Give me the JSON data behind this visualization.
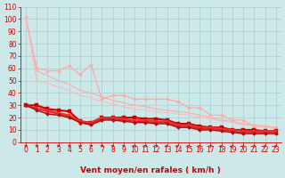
{
  "xlabel": "Vent moyen/en rafales ( km/h )",
  "bg_color": "#cce8e8",
  "grid_color": "#aacece",
  "axis_color": "#cc0000",
  "text_color": "#cc0000",
  "xlim": [
    -0.5,
    23.5
  ],
  "ylim": [
    0,
    110
  ],
  "yticks": [
    0,
    10,
    20,
    30,
    40,
    50,
    60,
    70,
    80,
    90,
    100,
    110
  ],
  "xticks": [
    0,
    1,
    2,
    3,
    4,
    5,
    6,
    7,
    8,
    9,
    10,
    11,
    12,
    13,
    14,
    15,
    16,
    17,
    18,
    19,
    20,
    21,
    22,
    23
  ],
  "lines": [
    {
      "x": [
        0,
        1,
        2,
        3,
        4,
        5,
        6,
        7,
        8,
        9,
        10,
        11,
        12,
        13,
        14,
        15,
        16,
        17,
        18,
        19,
        20,
        21,
        22,
        23
      ],
      "y": [
        102,
        60,
        58,
        58,
        62,
        55,
        63,
        35,
        38,
        38,
        35,
        35,
        35,
        35,
        33,
        28,
        28,
        22,
        22,
        18,
        18,
        13,
        13,
        12
      ],
      "color": "#ffaaaa",
      "lw": 0.9,
      "marker": "D",
      "ms": 2.0
    },
    {
      "x": [
        0,
        1,
        2,
        3,
        4,
        5,
        6,
        7,
        8,
        9,
        10,
        11,
        12,
        13,
        14,
        15,
        16,
        17,
        18,
        19,
        20,
        21,
        22,
        23
      ],
      "y": [
        102,
        58,
        54,
        50,
        47,
        42,
        40,
        37,
        34,
        32,
        30,
        29,
        27,
        26,
        25,
        24,
        22,
        20,
        18,
        17,
        15,
        14,
        13,
        12
      ],
      "color": "#ffaaaa",
      "lw": 0.8,
      "marker": null,
      "ms": 0
    },
    {
      "x": [
        0,
        1,
        2,
        3,
        4,
        5,
        6,
        7,
        8,
        9,
        10,
        11,
        12,
        13,
        14,
        15,
        16,
        17,
        18,
        19,
        20,
        21,
        22,
        23
      ],
      "y": [
        102,
        50,
        48,
        45,
        42,
        38,
        36,
        33,
        31,
        29,
        27,
        26,
        25,
        24,
        23,
        22,
        20,
        19,
        17,
        16,
        14,
        13,
        12,
        11
      ],
      "color": "#ffbbbb",
      "lw": 0.8,
      "marker": null,
      "ms": 0
    },
    {
      "x": [
        0,
        1,
        2,
        3,
        4,
        5,
        6,
        7,
        8,
        9,
        10,
        11,
        12,
        13,
        14,
        15,
        16,
        17,
        18,
        19,
        20,
        21,
        22,
        23
      ],
      "y": [
        30,
        30,
        27,
        26,
        25,
        17,
        16,
        20,
        20,
        20,
        20,
        19,
        19,
        18,
        15,
        15,
        13,
        12,
        12,
        10,
        10,
        10,
        9,
        9
      ],
      "color": "#cc0000",
      "lw": 1.5,
      "marker": "s",
      "ms": 2.2
    },
    {
      "x": [
        0,
        1,
        2,
        3,
        4,
        5,
        6,
        7,
        8,
        9,
        10,
        11,
        12,
        13,
        14,
        15,
        16,
        17,
        18,
        19,
        20,
        21,
        22,
        23
      ],
      "y": [
        30,
        28,
        26,
        24,
        22,
        17,
        16,
        20,
        20,
        19,
        18,
        18,
        17,
        17,
        14,
        14,
        12,
        12,
        11,
        10,
        9,
        9,
        9,
        9
      ],
      "color": "#ee3333",
      "lw": 1.2,
      "marker": "s",
      "ms": 1.8
    },
    {
      "x": [
        0,
        1,
        2,
        3,
        4,
        5,
        6,
        7,
        8,
        9,
        10,
        11,
        12,
        13,
        14,
        15,
        16,
        17,
        18,
        19,
        20,
        21,
        22,
        23
      ],
      "y": [
        30,
        27,
        25,
        23,
        21,
        16,
        15,
        19,
        19,
        18,
        17,
        17,
        16,
        16,
        13,
        13,
        11,
        11,
        10,
        9,
        8,
        8,
        8,
        8
      ],
      "color": "#dd2222",
      "lw": 1.1,
      "marker": "^",
      "ms": 2.5
    },
    {
      "x": [
        0,
        1,
        2,
        3,
        4,
        5,
        6,
        7,
        8,
        9,
        10,
        11,
        12,
        13,
        14,
        15,
        16,
        17,
        18,
        19,
        20,
        21,
        22,
        23
      ],
      "y": [
        30,
        26,
        23,
        22,
        20,
        16,
        14,
        18,
        18,
        17,
        16,
        16,
        15,
        15,
        12,
        12,
        10,
        10,
        9,
        8,
        7,
        7,
        7,
        7
      ],
      "color": "#aa1111",
      "lw": 1.1,
      "marker": "D",
      "ms": 2.0
    }
  ],
  "label_fontsize": 6.5,
  "tick_fontsize": 5.5
}
